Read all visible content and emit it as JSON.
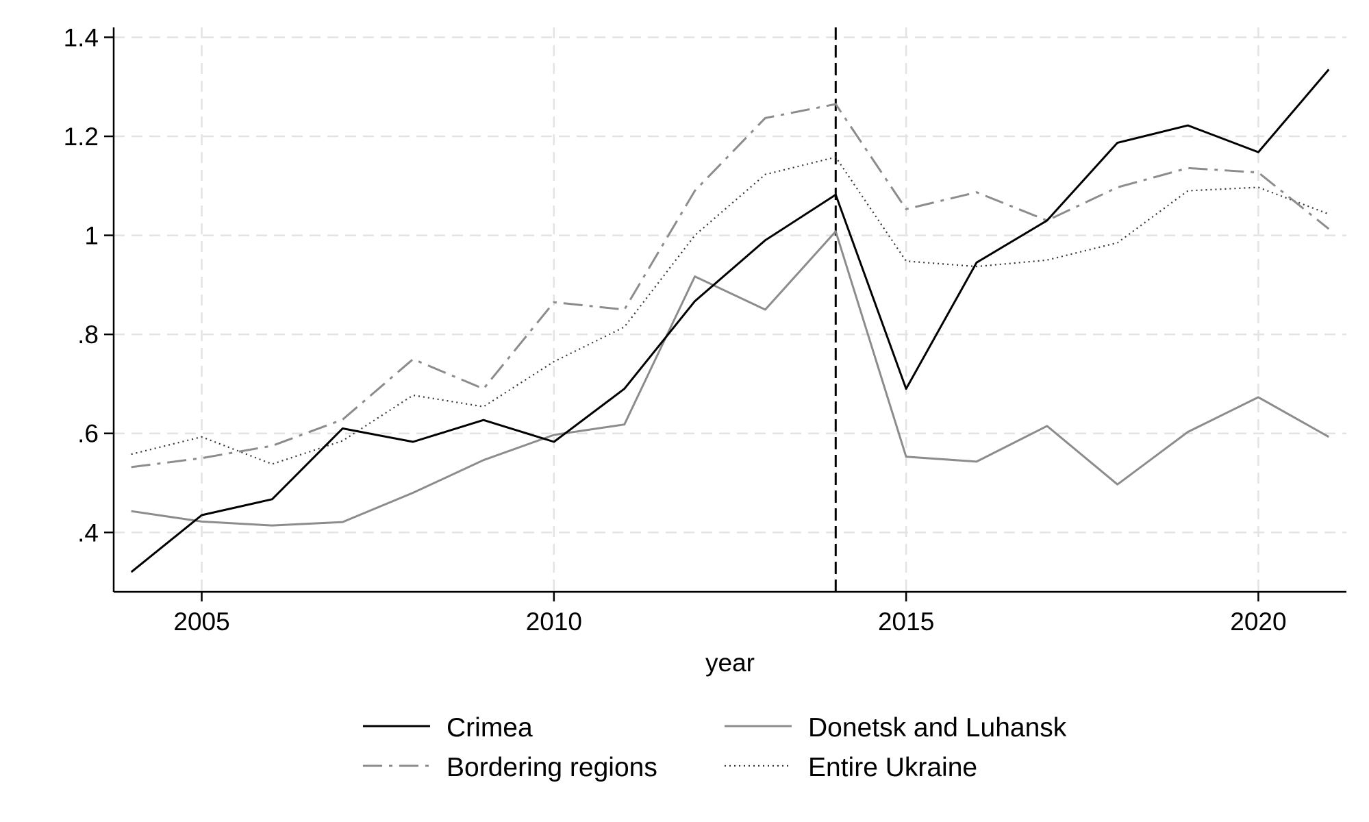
{
  "chart_data": {
    "type": "line",
    "title": "",
    "xlabel": "year",
    "ylabel": "",
    "xlim": [
      2003.75,
      2021.25
    ],
    "ylim": [
      0.28,
      1.42
    ],
    "x_ticks": [
      2005,
      2010,
      2015,
      2020
    ],
    "x_tick_labels": [
      "2005",
      "2010",
      "2015",
      "2020"
    ],
    "y_ticks": [
      0.4,
      0.6,
      0.8,
      1.0,
      1.2,
      1.4
    ],
    "y_tick_labels": [
      ".4",
      ".6",
      ".8",
      "1",
      "1.2",
      "1.4"
    ],
    "grid": true,
    "vline": {
      "x": 2014,
      "style": "dashed",
      "color": "#000000"
    },
    "x": [
      2004,
      2005,
      2006,
      2007,
      2008,
      2009,
      2010,
      2011,
      2012,
      2013,
      2014,
      2015,
      2016,
      2017,
      2018,
      2019,
      2020,
      2021
    ],
    "series": [
      {
        "name": "Crimea",
        "color": "#000000",
        "dash": "solid",
        "values": [
          0.32,
          0.435,
          0.467,
          0.61,
          0.583,
          0.627,
          0.583,
          0.69,
          0.867,
          0.99,
          1.082,
          0.69,
          0.945,
          1.03,
          1.187,
          1.222,
          1.168,
          1.335
        ]
      },
      {
        "name": "Donetsk and Luhansk",
        "color": "#8c8c8c",
        "dash": "solid",
        "values": [
          0.443,
          0.422,
          0.414,
          0.421,
          0.48,
          0.546,
          0.597,
          0.618,
          0.917,
          0.85,
          1.008,
          0.553,
          0.543,
          0.615,
          0.497,
          0.603,
          0.673,
          0.593
        ]
      },
      {
        "name": "Bordering regions",
        "color": "#8c8c8c",
        "dash": "dashdot",
        "values": [
          0.532,
          0.55,
          0.575,
          0.628,
          0.75,
          0.69,
          0.865,
          0.85,
          1.09,
          1.237,
          1.265,
          1.053,
          1.087,
          1.03,
          1.097,
          1.136,
          1.127,
          1.013
        ]
      },
      {
        "name": "Entire Ukraine",
        "color": "#333333",
        "dash": "dotted",
        "values": [
          0.558,
          0.593,
          0.538,
          0.585,
          0.677,
          0.654,
          0.745,
          0.815,
          1.0,
          1.123,
          1.158,
          0.948,
          0.937,
          0.95,
          0.985,
          1.09,
          1.097,
          1.043
        ]
      }
    ],
    "legend": {
      "placement": "bottom",
      "columns": 2,
      "entries": [
        "Crimea",
        "Donetsk and Luhansk",
        "Bordering regions",
        "Entire Ukraine"
      ]
    }
  }
}
